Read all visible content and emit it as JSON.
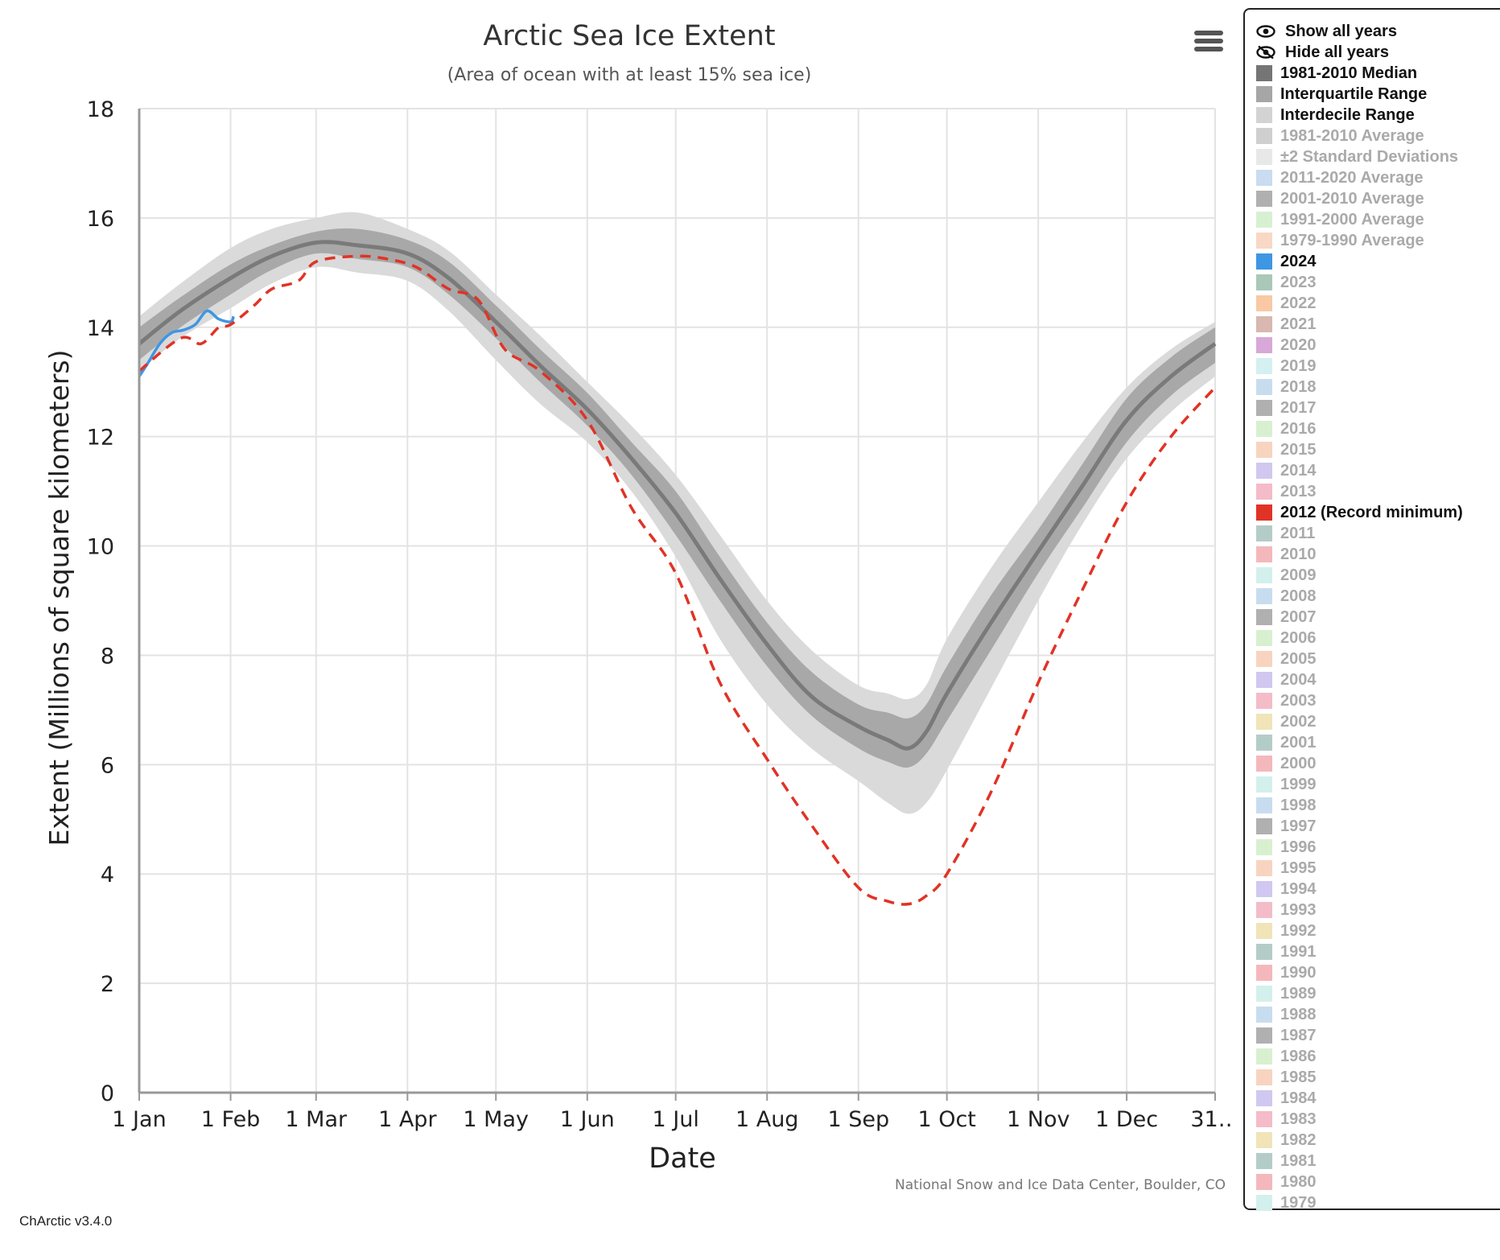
{
  "chart_data": {
    "type": "line",
    "title": "Arctic Sea Ice Extent",
    "subtitle": "(Area of ocean with at least 15% sea ice)",
    "xlabel": "Date",
    "ylabel": "Extent (Millions of square kilometers)",
    "ylim": [
      0,
      18
    ],
    "yticks": [
      0,
      2,
      4,
      6,
      8,
      10,
      12,
      14,
      16,
      18
    ],
    "xlim": [
      1,
      366
    ],
    "xticks": [
      {
        "day": 1,
        "label": "1 Jan"
      },
      {
        "day": 32,
        "label": "1 Feb"
      },
      {
        "day": 61,
        "label": "1 Mar"
      },
      {
        "day": 92,
        "label": "1 Apr"
      },
      {
        "day": 122,
        "label": "1 May"
      },
      {
        "day": 153,
        "label": "1 Jun"
      },
      {
        "day": 183,
        "label": "1 Jul"
      },
      {
        "day": 214,
        "label": "1 Aug"
      },
      {
        "day": 245,
        "label": "1 Sep"
      },
      {
        "day": 275,
        "label": "1 Oct"
      },
      {
        "day": 306,
        "label": "1 Nov"
      },
      {
        "day": 336,
        "label": "1 Dec"
      },
      {
        "day": 366,
        "label": "31…"
      }
    ],
    "grid": true,
    "credit": "National Snow and Ice Data Center, Boulder, CO",
    "x_days": [
      1,
      15,
      32,
      46,
      61,
      75,
      92,
      106,
      122,
      137,
      153,
      168,
      183,
      198,
      214,
      229,
      245,
      255,
      262,
      268,
      275,
      290,
      306,
      321,
      336,
      351,
      366
    ],
    "median": [
      13.7,
      14.3,
      14.9,
      15.3,
      15.55,
      15.5,
      15.35,
      14.9,
      14.1,
      13.3,
      12.5,
      11.6,
      10.6,
      9.4,
      8.2,
      7.25,
      6.7,
      6.45,
      6.3,
      6.6,
      7.3,
      8.6,
      9.9,
      11.1,
      12.3,
      13.1,
      13.7
    ],
    "interquartile": {
      "low": [
        13.4,
        14.0,
        14.6,
        15.05,
        15.35,
        15.25,
        15.1,
        14.6,
        13.8,
        13.0,
        12.2,
        11.3,
        10.2,
        9.0,
        7.8,
        6.9,
        6.3,
        6.05,
        5.95,
        6.2,
        6.8,
        8.1,
        9.5,
        10.7,
        11.9,
        12.75,
        13.35
      ],
      "high": [
        14.0,
        14.55,
        15.15,
        15.5,
        15.75,
        15.8,
        15.6,
        15.2,
        14.4,
        13.6,
        12.8,
        11.9,
        11.0,
        9.8,
        8.6,
        7.7,
        7.1,
        6.95,
        6.85,
        7.1,
        7.8,
        9.1,
        10.3,
        11.5,
        12.7,
        13.45,
        14.0
      ]
    },
    "interdecile": {
      "low": [
        13.2,
        13.8,
        14.35,
        14.8,
        15.1,
        15.0,
        14.85,
        14.3,
        13.4,
        12.6,
        11.9,
        11.0,
        9.8,
        8.3,
        7.1,
        6.3,
        5.7,
        5.3,
        5.1,
        5.3,
        5.9,
        7.4,
        9.0,
        10.4,
        11.6,
        12.45,
        13.1
      ],
      "high": [
        14.2,
        14.8,
        15.45,
        15.8,
        16.0,
        16.1,
        15.8,
        15.4,
        14.6,
        13.85,
        13.0,
        12.2,
        11.3,
        10.2,
        9.0,
        8.1,
        7.45,
        7.3,
        7.2,
        7.45,
        8.3,
        9.6,
        10.8,
        11.9,
        12.9,
        13.6,
        14.1
      ]
    },
    "series": [
      {
        "name": "2024",
        "color": "#3f96e3",
        "style": "solid",
        "x": [
          1,
          4,
          8,
          12,
          16,
          20,
          24,
          28,
          32,
          33
        ],
        "y": [
          13.1,
          13.35,
          13.7,
          13.9,
          13.95,
          14.05,
          14.3,
          14.15,
          14.1,
          14.2
        ]
      },
      {
        "name": "2012 (Record minimum)",
        "color": "#e03326",
        "style": "dashed",
        "x": [
          1,
          15,
          22,
          28,
          32,
          40,
          46,
          55,
          61,
          75,
          85,
          95,
          106,
          116,
          125,
          137,
          153,
          168,
          183,
          198,
          214,
          229,
          245,
          255,
          262,
          268,
          275,
          290,
          306,
          321,
          336,
          351,
          366
        ],
        "y": [
          13.2,
          13.8,
          13.7,
          14.0,
          14.05,
          14.4,
          14.7,
          14.85,
          15.2,
          15.3,
          15.25,
          15.1,
          14.7,
          14.5,
          13.6,
          13.2,
          12.3,
          10.7,
          9.5,
          7.5,
          6.1,
          4.9,
          3.75,
          3.5,
          3.45,
          3.6,
          4.0,
          5.5,
          7.5,
          9.2,
          10.8,
          12.0,
          12.9
        ]
      }
    ]
  },
  "menu": {
    "icon": "hamburger-menu-icon"
  },
  "legend": {
    "items": [
      {
        "label": "Show all years",
        "icon": "eye-icon",
        "active": true
      },
      {
        "label": "Hide all years",
        "icon": "eye-slash-icon",
        "active": true
      },
      {
        "label": "1981-2010 Median",
        "color": "#757575",
        "active": true
      },
      {
        "label": "Interquartile Range",
        "color": "#a6a6a6",
        "active": true
      },
      {
        "label": "Interdecile Range",
        "color": "#d3d3d3",
        "active": true
      },
      {
        "label": "1981-2010 Average",
        "color": "#cfcfcf",
        "active": false
      },
      {
        "label": "±2 Standard Deviations",
        "color": "#e8e8e8",
        "active": false
      },
      {
        "label": "2011-2020 Average",
        "color": "#c9dcf0",
        "active": false
      },
      {
        "label": "2001-2010 Average",
        "color": "#b0b0b0",
        "active": false
      },
      {
        "label": "1991-2000 Average",
        "color": "#d8f0d2",
        "active": false
      },
      {
        "label": "1979-1990 Average",
        "color": "#f8d8c5",
        "active": false
      },
      {
        "label": "2024",
        "color": "#3f96e3",
        "active": true
      },
      {
        "label": "2023",
        "color": "#a9c8b8",
        "active": false
      },
      {
        "label": "2022",
        "color": "#f8c9a4",
        "active": false
      },
      {
        "label": "2021",
        "color": "#d8b8b0",
        "active": false
      },
      {
        "label": "2020",
        "color": "#d8a8d8",
        "active": false
      },
      {
        "label": "2019",
        "color": "#d4f0f0",
        "active": false
      },
      {
        "label": "2018",
        "color": "#c8dcf0",
        "active": false
      },
      {
        "label": "2017",
        "color": "#b0b0b0",
        "active": false
      },
      {
        "label": "2016",
        "color": "#d8f0d0",
        "active": false
      },
      {
        "label": "2015",
        "color": "#f8d4c0",
        "active": false
      },
      {
        "label": "2014",
        "color": "#d0c8f0",
        "active": false
      },
      {
        "label": "2013",
        "color": "#f4bcc8",
        "active": false
      },
      {
        "label": "2012 (Record minimum)",
        "color": "#e03326",
        "active": true
      },
      {
        "label": "2011",
        "color": "#b4ccc8",
        "active": false
      },
      {
        "label": "2010",
        "color": "#f4b8bc",
        "active": false
      },
      {
        "label": "2009",
        "color": "#d4f0ec",
        "active": false
      },
      {
        "label": "2008",
        "color": "#c8dcf0",
        "active": false
      },
      {
        "label": "2007",
        "color": "#b0b0b0",
        "active": false
      },
      {
        "label": "2006",
        "color": "#d8f0d0",
        "active": false
      },
      {
        "label": "2005",
        "color": "#f8d4c0",
        "active": false
      },
      {
        "label": "2004",
        "color": "#d0c8f0",
        "active": false
      },
      {
        "label": "2003",
        "color": "#f4bcc8",
        "active": false
      },
      {
        "label": "2002",
        "color": "#f0e4b8",
        "active": false
      },
      {
        "label": "2001",
        "color": "#b4ccc8",
        "active": false
      },
      {
        "label": "2000",
        "color": "#f4b8bc",
        "active": false
      },
      {
        "label": "1999",
        "color": "#d4f0ec",
        "active": false
      },
      {
        "label": "1998",
        "color": "#c8dcf0",
        "active": false
      },
      {
        "label": "1997",
        "color": "#b0b0b0",
        "active": false
      },
      {
        "label": "1996",
        "color": "#d8f0d0",
        "active": false
      },
      {
        "label": "1995",
        "color": "#f8d4c0",
        "active": false
      },
      {
        "label": "1994",
        "color": "#d0c8f0",
        "active": false
      },
      {
        "label": "1993",
        "color": "#f4bcc8",
        "active": false
      },
      {
        "label": "1992",
        "color": "#f0e4b8",
        "active": false
      },
      {
        "label": "1991",
        "color": "#b4ccc8",
        "active": false
      },
      {
        "label": "1990",
        "color": "#f4b8bc",
        "active": false
      },
      {
        "label": "1989",
        "color": "#d4f0ec",
        "active": false
      },
      {
        "label": "1988",
        "color": "#c8dcf0",
        "active": false
      },
      {
        "label": "1987",
        "color": "#b0b0b0",
        "active": false
      },
      {
        "label": "1986",
        "color": "#d8f0d0",
        "active": false
      },
      {
        "label": "1985",
        "color": "#f8d4c0",
        "active": false
      },
      {
        "label": "1984",
        "color": "#d0c8f0",
        "active": false
      },
      {
        "label": "1983",
        "color": "#f4bcc8",
        "active": false
      },
      {
        "label": "1982",
        "color": "#f0e4b8",
        "active": false
      },
      {
        "label": "1981",
        "color": "#b4ccc8",
        "active": false
      },
      {
        "label": "1980",
        "color": "#f4b8bc",
        "active": false
      },
      {
        "label": "1979",
        "color": "#d4f0ec",
        "active": false
      }
    ]
  },
  "footer": {
    "version": "ChArctic v3.4.0"
  }
}
